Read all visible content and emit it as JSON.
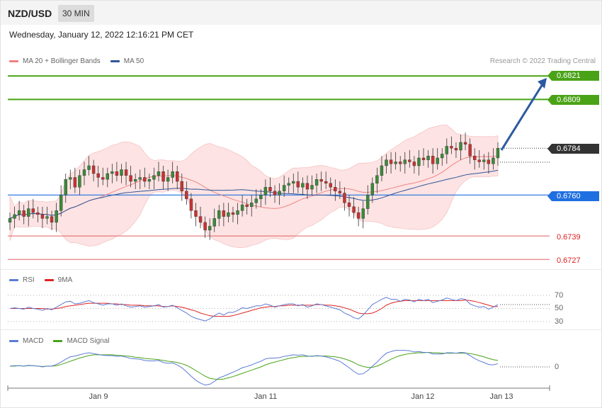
{
  "header": {
    "pair": "NZD/USD",
    "timeframe": "30 MIN"
  },
  "datetime": "Wednesday, January 12, 2022 12:16:21 PM CET",
  "credit": "Research © 2022 Trading Central",
  "legend_main": [
    {
      "label": "MA 20 + Bollinger Bands",
      "color": "#f08080"
    },
    {
      "label": "MA 50",
      "color": "#2f5597"
    }
  ],
  "legend_rsi": [
    {
      "label": "RSI",
      "color": "#5b7bd5"
    },
    {
      "label": "9MA",
      "color": "#e02020"
    }
  ],
  "legend_macd": [
    {
      "label": "MACD",
      "color": "#5b7bd5"
    },
    {
      "label": "MACD Signal",
      "color": "#4aa317"
    }
  ],
  "price_tags": {
    "r2": "0.6821",
    "r1": "0.6809",
    "current": "0.6784",
    "pivot": "0.6760",
    "s1": "0.6739",
    "s2": "0.6727"
  },
  "rsi_levels": [
    "70",
    "50",
    "30"
  ],
  "macd_levels": [
    "0"
  ],
  "x_labels": [
    "Jan 9",
    "Jan 11",
    "Jan 12",
    "Jan 13"
  ],
  "colors": {
    "resistance": "#4aa317",
    "pivot": "#1f6fe0",
    "support": "#e06060",
    "current_tag": "#333333",
    "arrow": "#2c5aa0",
    "bull": "#3a8a3a",
    "bear": "#c83232",
    "band_fill": "#fde3e3"
  },
  "chart_data": [
    {
      "type": "candlestick",
      "title": "NZD/USD 30 MIN",
      "ylim": [
        0.6722,
        0.6824
      ],
      "levels": [
        {
          "name": "resistance 2",
          "value": 0.6821
        },
        {
          "name": "resistance 1",
          "value": 0.6809
        },
        {
          "name": "pivot",
          "value": 0.676
        },
        {
          "name": "support 1",
          "value": 0.6739
        },
        {
          "name": "support 2",
          "value": 0.6727
        }
      ],
      "last_price": 0.6784,
      "projection": {
        "from": 0.6783,
        "to": 0.682
      },
      "series": [
        {
          "name": "MA 20 + Bollinger Bands"
        },
        {
          "name": "MA 50"
        }
      ],
      "close": [
        0.6748,
        0.675,
        0.6752,
        0.6749,
        0.6753,
        0.6751,
        0.675,
        0.6748,
        0.6749,
        0.6746,
        0.6752,
        0.676,
        0.6768,
        0.6769,
        0.6764,
        0.677,
        0.6773,
        0.6775,
        0.6771,
        0.6769,
        0.6768,
        0.6771,
        0.6772,
        0.677,
        0.6773,
        0.677,
        0.6767,
        0.6768,
        0.6769,
        0.6767,
        0.6768,
        0.677,
        0.6772,
        0.6767,
        0.6769,
        0.6772,
        0.6767,
        0.6762,
        0.6758,
        0.6752,
        0.6749,
        0.6746,
        0.6742,
        0.6744,
        0.6748,
        0.6752,
        0.6749,
        0.6751,
        0.675,
        0.6752,
        0.6755,
        0.6754,
        0.6756,
        0.6758,
        0.676,
        0.6764,
        0.6762,
        0.676,
        0.6762,
        0.6765,
        0.6766,
        0.6767,
        0.6764,
        0.6766,
        0.6763,
        0.6765,
        0.6768,
        0.6767,
        0.6766,
        0.6764,
        0.6762,
        0.6761,
        0.6756,
        0.6754,
        0.6751,
        0.6748,
        0.6753,
        0.676,
        0.6766,
        0.677,
        0.6775,
        0.6778,
        0.6776,
        0.6777,
        0.6776,
        0.6778,
        0.6777,
        0.6775,
        0.6779,
        0.6778,
        0.678,
        0.6776,
        0.6779,
        0.6781,
        0.6785,
        0.6784,
        0.6783,
        0.6787,
        0.6786,
        0.678,
        0.6778,
        0.6777,
        0.6778,
        0.6776,
        0.6779,
        0.6784
      ],
      "rsi": [
        50,
        51,
        50,
        49,
        52,
        50,
        49,
        47,
        50,
        48,
        52,
        56,
        60,
        61,
        57,
        58,
        60,
        62,
        59,
        57,
        55,
        57,
        57,
        55,
        57,
        54,
        52,
        53,
        54,
        52,
        53,
        54,
        56,
        52,
        53,
        55,
        51,
        47,
        43,
        38,
        35,
        33,
        31,
        34,
        39,
        43,
        40,
        44,
        44,
        47,
        51,
        50,
        52,
        54,
        54,
        57,
        55,
        52,
        54,
        56,
        57,
        57,
        54,
        56,
        52,
        54,
        57,
        56,
        54,
        52,
        50,
        48,
        43,
        40,
        36,
        34,
        40,
        48,
        56,
        60,
        64,
        67,
        64,
        64,
        61,
        64,
        63,
        60,
        64,
        62,
        64,
        59,
        61,
        63,
        66,
        64,
        62,
        65,
        64,
        57,
        54,
        52,
        53,
        49,
        52,
        56
      ],
      "rsi_ma": [
        50,
        50,
        50,
        50,
        50,
        50,
        50,
        50,
        49,
        49,
        50,
        51,
        53,
        54,
        55,
        56,
        57,
        58,
        58,
        58,
        58,
        58,
        57,
        57,
        56,
        56,
        55,
        55,
        55,
        54,
        54,
        54,
        54,
        53,
        53,
        54,
        53,
        52,
        50,
        48,
        46,
        43,
        41,
        39,
        38,
        38,
        38,
        38,
        39,
        41,
        43,
        45,
        47,
        49,
        51,
        52,
        53,
        53,
        54,
        54,
        55,
        55,
        55,
        55,
        55,
        55,
        56,
        56,
        55,
        55,
        54,
        53,
        51,
        49,
        46,
        43,
        42,
        42,
        43,
        46,
        50,
        55,
        58,
        60,
        61,
        62,
        62,
        62,
        62,
        62,
        62,
        62,
        62,
        62,
        62,
        62,
        62,
        62,
        63,
        62,
        61,
        59,
        57,
        55,
        53,
        53
      ],
      "macd": [
        0.2,
        0.3,
        0.3,
        0.2,
        0.4,
        0.3,
        0.2,
        0.0,
        0.2,
        0.2,
        0.6,
        1.2,
        1.9,
        2.5,
        2.7,
        3.0,
        3.3,
        3.5,
        3.3,
        3.1,
        2.9,
        2.8,
        2.8,
        2.6,
        2.7,
        2.4,
        2.1,
        2.0,
        1.9,
        1.6,
        1.5,
        1.5,
        1.6,
        1.1,
        0.9,
        1.0,
        0.5,
        -0.2,
        -1.2,
        -2.3,
        -3.3,
        -4.0,
        -4.5,
        -4.3,
        -3.6,
        -2.7,
        -2.3,
        -1.8,
        -1.3,
        -0.8,
        -0.2,
        0.1,
        0.5,
        1.0,
        1.4,
        2.0,
        2.2,
        2.2,
        2.3,
        2.6,
        2.8,
        3.0,
        2.9,
        3.0,
        2.7,
        2.6,
        2.8,
        2.7,
        2.5,
        2.2,
        1.8,
        1.4,
        0.6,
        -0.2,
        -1.1,
        -1.8,
        -1.7,
        -0.9,
        0.2,
        1.2,
        2.4,
        3.4,
        3.8,
        4.1,
        4.1,
        4.1,
        4.0,
        3.7,
        3.8,
        3.6,
        3.6,
        3.2,
        3.2,
        3.2,
        3.5,
        3.5,
        3.4,
        3.6,
        3.5,
        2.8,
        2.1,
        1.5,
        1.1,
        0.6,
        0.5,
        0.8
      ],
      "macd_signal": [
        0.2,
        0.2,
        0.3,
        0.2,
        0.3,
        0.3,
        0.2,
        0.1,
        0.2,
        0.2,
        0.3,
        0.6,
        1.0,
        1.4,
        1.8,
        2.2,
        2.5,
        2.8,
        3.0,
        3.0,
        3.0,
        3.0,
        3.0,
        2.9,
        2.8,
        2.7,
        2.6,
        2.4,
        2.3,
        2.1,
        2.0,
        1.9,
        1.8,
        1.6,
        1.4,
        1.3,
        1.1,
        0.8,
        0.4,
        -0.2,
        -0.9,
        -1.6,
        -2.3,
        -2.8,
        -3.0,
        -3.1,
        -3.0,
        -2.7,
        -2.4,
        -2.0,
        -1.6,
        -1.2,
        -0.8,
        -0.4,
        0.0,
        0.5,
        0.9,
        1.2,
        1.5,
        1.8,
        2.1,
        2.3,
        2.5,
        2.6,
        2.6,
        2.7,
        2.7,
        2.7,
        2.7,
        2.6,
        2.5,
        2.3,
        2.0,
        1.6,
        1.1,
        0.5,
        0.1,
        -0.1,
        -0.1,
        0.2,
        0.7,
        1.3,
        1.9,
        2.4,
        2.8,
        3.1,
        3.3,
        3.4,
        3.5,
        3.5,
        3.6,
        3.5,
        3.5,
        3.4,
        3.4,
        3.4,
        3.4,
        3.4,
        3.4,
        3.3,
        3.1,
        2.8,
        2.5,
        2.1,
        1.8,
        1.6
      ]
    }
  ]
}
